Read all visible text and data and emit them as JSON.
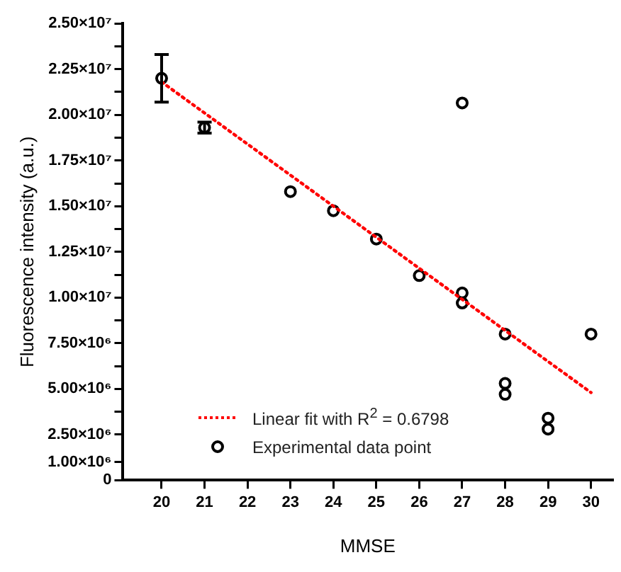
{
  "chart_data": {
    "type": "scatter",
    "xlabel": "MMSE",
    "ylabel": "Fluorescence intensity (a.u.)",
    "xlim": [
      19.1,
      30.5
    ],
    "xticks": [
      20,
      21,
      22,
      23,
      24,
      25,
      26,
      27,
      28,
      29,
      30
    ],
    "ylim": [
      0,
      25000000
    ],
    "yticks": [
      0,
      {
        "value": 1000000,
        "label": "1.00×10⁶"
      },
      {
        "value": 2500000,
        "label": "2.50×10⁶"
      },
      {
        "value": 3750000,
        "label": null
      },
      {
        "value": 5000000,
        "label": "5.00×10⁶"
      },
      {
        "value": 6250000,
        "label": null
      },
      {
        "value": 7500000,
        "label": "7.50×10⁶"
      },
      {
        "value": 8750000,
        "label": null
      },
      {
        "value": 10000000,
        "label": "1.00×10⁷"
      },
      {
        "value": 11250000,
        "label": null
      },
      {
        "value": 12500000,
        "label": "1.25×10⁷"
      },
      {
        "value": 13750000,
        "label": null
      },
      {
        "value": 15000000,
        "label": "1.50×10⁷"
      },
      {
        "value": 16250000,
        "label": null
      },
      {
        "value": 17500000,
        "label": "1.75×10⁷"
      },
      {
        "value": 18750000,
        "label": null
      },
      {
        "value": 20000000,
        "label": "2.00×10⁷"
      },
      {
        "value": 21250000,
        "label": null
      },
      {
        "value": 22500000,
        "label": "2.25×10⁷"
      },
      {
        "value": 23750000,
        "label": null
      },
      {
        "value": 25000000,
        "label": "2.50×10⁷"
      }
    ],
    "grid": false,
    "legend": "bottom left",
    "series": [
      {
        "name": "Linear fit with R$^{2}$ = 0.6798",
        "type": "line",
        "color": "#ff0000",
        "line_style": "dotted",
        "marker": "none",
        "x": [
          20,
          30
        ],
        "values": [
          21800000,
          4800000
        ]
      },
      {
        "name": "Experimental data point",
        "type": "scatter",
        "color": "#000000",
        "marker": "circle",
        "x": [
          20,
          21,
          23,
          24,
          25,
          26,
          27,
          27,
          27,
          28,
          28,
          28,
          29,
          29,
          30
        ],
        "values": [
          22000000,
          19300000,
          15800000,
          14750000,
          13200000,
          11200000,
          20650000,
          10250000,
          9700000,
          8000000,
          5300000,
          4700000,
          3400000,
          2800000,
          8000000
        ],
        "errors": [
          1300000,
          300000,
          null,
          null,
          null,
          null,
          null,
          null,
          null,
          null,
          null,
          null,
          null,
          null,
          null
        ]
      }
    ]
  }
}
